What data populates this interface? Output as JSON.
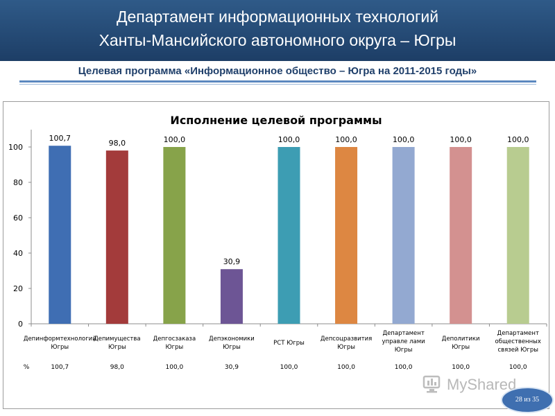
{
  "header": {
    "line1": "Департамент информационных технологий",
    "line2": "Ханты-Мансийского автономного округа – Югры"
  },
  "subtitle": "Целевая программа «Информационное общество – Югра на 2011-2015 годы»",
  "brand": {
    "text": "MyShared",
    "icon": "monitor-icon"
  },
  "page_badge": "28 из 35",
  "chart_data": {
    "type": "bar",
    "title": "Исполнение целевой программы",
    "categories": [
      [
        "Депинформтехнологий",
        "Югры"
      ],
      [
        "Депимущества",
        "Югры"
      ],
      [
        "Депгосзаказа",
        "Югры"
      ],
      [
        "Депэкономики",
        "Югры"
      ],
      [
        "РСТ Югры"
      ],
      [
        "Депсоцразвития",
        "Югры"
      ],
      [
        "Департамент",
        "управле лами",
        "Югры"
      ],
      [
        "Деполитики",
        "Югры"
      ],
      [
        "Департамент",
        "общественных",
        "связей Югры"
      ]
    ],
    "values": [
      100.7,
      98.0,
      100.0,
      30.9,
      100.0,
      100.0,
      100.0,
      100.0,
      100.0
    ],
    "value_labels": [
      "100,7",
      "98,0",
      "100,0",
      "30,9",
      "100,0",
      "100,0",
      "100,0",
      "100,0",
      "100,0"
    ],
    "colors": [
      "#3f6eb3",
      "#a33b3b",
      "#87a34a",
      "#6d5595",
      "#3d9db3",
      "#dd8742",
      "#93a9d1",
      "#d39190",
      "#b8cc90"
    ],
    "ylim": [
      0,
      100
    ],
    "yticks": [
      "0",
      "20",
      "40",
      "60",
      "80",
      "100"
    ],
    "table_row": {
      "label": "%",
      "values": [
        "100,7",
        "98,0",
        "100,0",
        "30,9",
        "100,0",
        "100,0",
        "100,0",
        "100,0",
        "100,0"
      ]
    },
    "legend": "none",
    "grid": false
  }
}
